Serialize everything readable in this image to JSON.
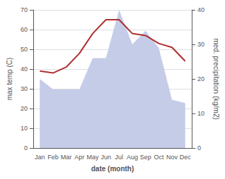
{
  "chart_data": {
    "type": "line",
    "categories": [
      "Jan",
      "Feb",
      "Mar",
      "Apr",
      "May",
      "Jun",
      "Jul",
      "Aug",
      "Sep",
      "Oct",
      "Nov",
      "Dec"
    ],
    "xlabel": "date (month)",
    "ylabel": "max temp (C)",
    "y2label": "med. precipitation (kg/m2)",
    "series": [
      {
        "type": "area",
        "axis": "y2",
        "color": "#c5cce8",
        "values": [
          20,
          17,
          17,
          17,
          26,
          26,
          40,
          30,
          34,
          29,
          14,
          13
        ]
      },
      {
        "type": "line",
        "color": "#b03030",
        "values": [
          39,
          38,
          41,
          48,
          58,
          65,
          65,
          58,
          57,
          53,
          51,
          44
        ]
      }
    ],
    "ylim": [
      0,
      70
    ],
    "yticks": [
      0,
      10,
      20,
      30,
      40,
      50,
      60,
      70
    ],
    "y2lim": [
      0,
      40
    ],
    "y2ticks": [
      0,
      10,
      20,
      30,
      40
    ],
    "grid": true
  }
}
